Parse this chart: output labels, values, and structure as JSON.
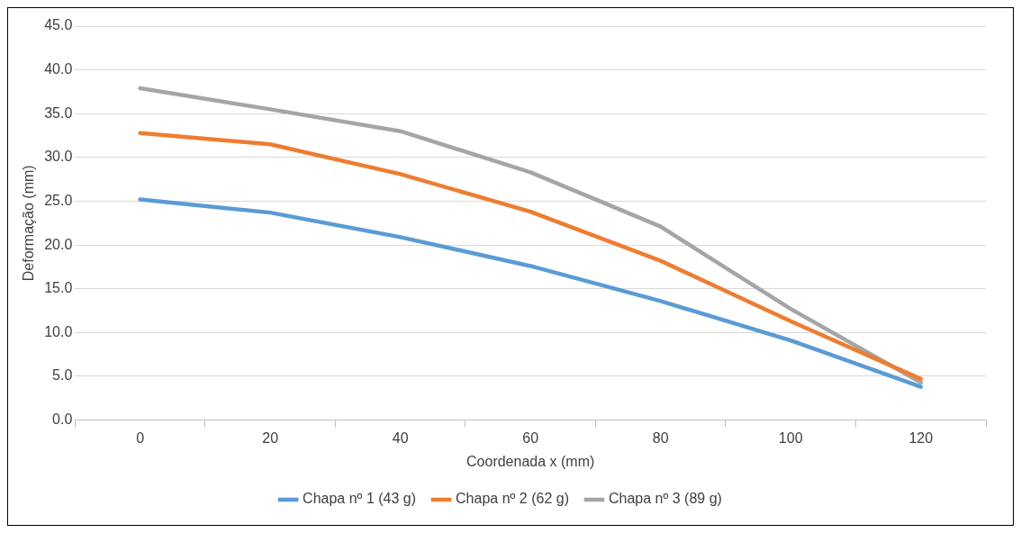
{
  "chart_data": {
    "type": "line",
    "xlabel": "Coordenada x (mm)",
    "ylabel": "Deformação (mm)",
    "categories": [
      "0",
      "20",
      "40",
      "60",
      "80",
      "100",
      "120"
    ],
    "series": [
      {
        "name": "Chapa nº 1 (43 g)",
        "color": "#5b9bd5",
        "values": [
          25.2,
          23.7,
          20.9,
          17.6,
          13.6,
          9.1,
          3.8
        ]
      },
      {
        "name": "Chapa nº 2 (62 g)",
        "color": "#ed7d31",
        "values": [
          32.8,
          31.5,
          28.1,
          23.8,
          18.2,
          11.3,
          4.7
        ]
      },
      {
        "name": "Chapa nº 3 (89 g)",
        "color": "#a5a5a5",
        "values": [
          37.9,
          35.5,
          33.0,
          28.3,
          22.1,
          12.7,
          4.3
        ]
      }
    ],
    "ylim": [
      0,
      45
    ],
    "yticks": [
      {
        "value": 0,
        "label": "0.0"
      },
      {
        "value": 5,
        "label": "5.0"
      },
      {
        "value": 10,
        "label": "10.0"
      },
      {
        "value": 15,
        "label": "15.0"
      },
      {
        "value": 20,
        "label": "20.0"
      },
      {
        "value": 25,
        "label": "25.0"
      },
      {
        "value": 30,
        "label": "30.0"
      },
      {
        "value": 35,
        "label": "35.0"
      },
      {
        "value": 40,
        "label": "40.0"
      },
      {
        "value": 45,
        "label": "45.0"
      }
    ],
    "grid": "y",
    "legend": "bottom",
    "marker": "none",
    "line_style": "solid"
  }
}
